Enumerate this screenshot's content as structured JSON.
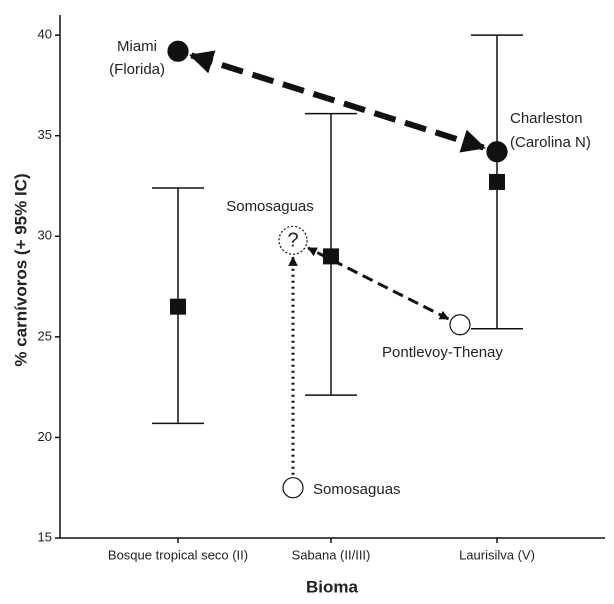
{
  "chart_data": {
    "type": "errorbar",
    "ylabel": "% carnívoros (+ 95% IC)",
    "xlabel": "Bioma",
    "categories": [
      "Bosque tropical seco (II)",
      "Sabana (II/III)",
      "Laurisilva (V)"
    ],
    "values": [
      26.5,
      29,
      32.7
    ],
    "lower": [
      20.7,
      22.1,
      25.4
    ],
    "upper": [
      32.4,
      36.1,
      40
    ],
    "ylim": [
      15,
      41
    ],
    "yticks": [
      15,
      20,
      25,
      30,
      35,
      40
    ],
    "points": [
      {
        "label": [
          "Miami",
          "(Florida)"
        ],
        "category": 0,
        "y": 39.2,
        "filled": true
      },
      {
        "label": [
          "Charleston",
          "(Carolina N)"
        ],
        "category": 2,
        "y": 34.2,
        "filled": true
      },
      {
        "label": [
          "Somosaguas"
        ],
        "symbol": "?",
        "category": 1,
        "y": 29.8,
        "filled": false
      },
      {
        "label": [
          "Pontlevoy-Thenay"
        ],
        "category": 2,
        "y": 25.6,
        "filled": false
      },
      {
        "label": [
          "Somosaguas"
        ],
        "category": 1,
        "y": 17.5,
        "filled": false
      }
    ]
  }
}
